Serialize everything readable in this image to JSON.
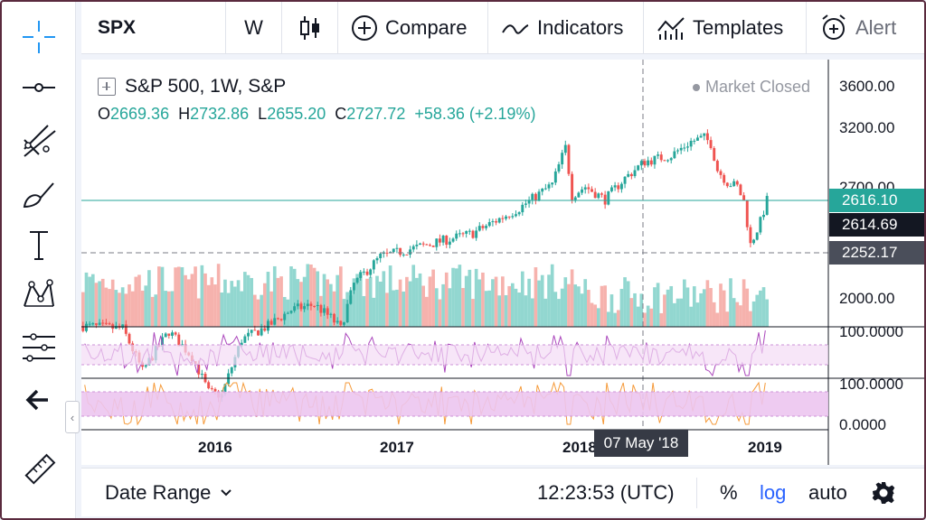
{
  "toolbar": {
    "symbol": "SPX",
    "interval": "W",
    "compare_label": "Compare",
    "indicators_label": "Indicators",
    "templates_label": "Templates",
    "alert_label": "Alert"
  },
  "left_tools": [
    "crosshair-icon",
    "horizontal-line-icon",
    "trend-lines-icon",
    "brush-icon",
    "text-icon",
    "pattern-icon",
    "measure-icon",
    "back-arrow-icon",
    "ruler-icon"
  ],
  "legend": {
    "title": "S&P 500, 1W, S&P",
    "open_label": "O",
    "open": "2669.36",
    "high_label": "H",
    "high": "2732.86",
    "low_label": "L",
    "low": "2655.20",
    "close_label": "C",
    "close": "2727.72",
    "change": "+58.36 (+2.19%)",
    "market_status": "Market Closed"
  },
  "price_axis": {
    "labels": [
      "3600.00",
      "3200.00",
      "2700.00",
      "2000.00"
    ],
    "last_price": "2616.10",
    "cursor_price": "2614.69",
    "line_price": "2252.17",
    "osc1_top": "100.0000",
    "osc2_top": "100.0000",
    "osc2_bottom": "0.0000"
  },
  "time_axis": {
    "labels": [
      "2016",
      "2017",
      "2018",
      "2019"
    ],
    "crosshair_date": "07 May '18"
  },
  "bottom_bar": {
    "date_range_label": "Date Range",
    "time": "12:23:53 (UTC)",
    "percent_label": "%",
    "log_label": "log",
    "auto_label": "auto"
  },
  "colors": {
    "up": "#26a69a",
    "down": "#ef5350",
    "accent": "#2962ff",
    "oscillator": "#ab47bc",
    "stoch": "#f59a3a"
  },
  "chart_data": {
    "type": "candlestick",
    "symbol": "S&P 500",
    "interval": "1W",
    "x_range": [
      "2015-05",
      "2019-01"
    ],
    "y_log_scale": true,
    "series": [
      {
        "date": "2015-06",
        "close": 2100
      },
      {
        "date": "2015-09",
        "close": 1920
      },
      {
        "date": "2016-01",
        "close": 1880
      },
      {
        "date": "2016-02",
        "close": 1860
      },
      {
        "date": "2016-06",
        "close": 2080
      },
      {
        "date": "2016-11",
        "close": 2140
      },
      {
        "date": "2017-03",
        "close": 2370
      },
      {
        "date": "2017-08",
        "close": 2470
      },
      {
        "date": "2017-12",
        "close": 2680
      },
      {
        "date": "2018-01",
        "close": 2870
      },
      {
        "date": "2018-02",
        "close": 2620
      },
      {
        "date": "2018-05",
        "close": 2700
      },
      {
        "date": "2018-09",
        "close": 2920
      },
      {
        "date": "2018-10",
        "close": 2760
      },
      {
        "date": "2018-12",
        "close": 2420
      },
      {
        "date": "2019-01",
        "close": 2616
      }
    ]
  }
}
